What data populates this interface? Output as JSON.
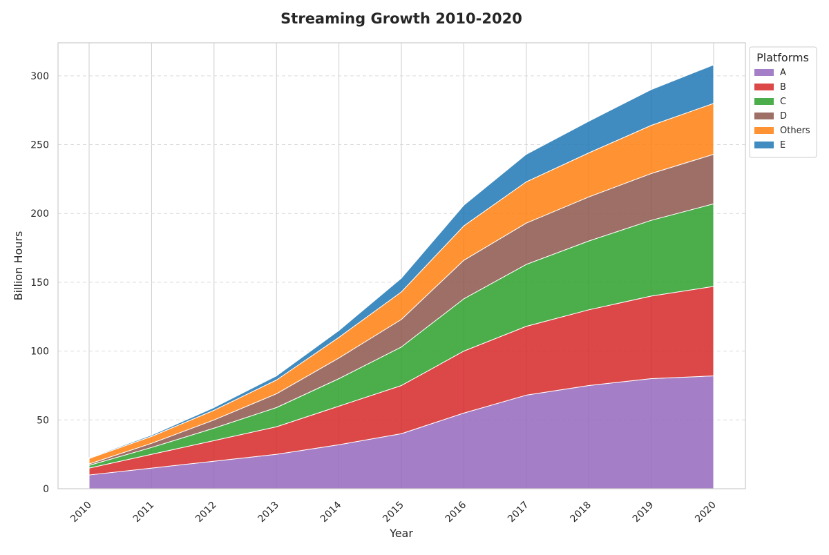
{
  "chart_data": {
    "type": "area",
    "stacked": true,
    "title": "Streaming Growth 2010-2020",
    "xlabel": "Year",
    "ylabel": "Billion Hours",
    "categories": [
      "2010",
      "2011",
      "2012",
      "2013",
      "2014",
      "2015",
      "2016",
      "2017",
      "2018",
      "2019",
      "2020"
    ],
    "ylim": [
      0,
      324
    ],
    "yticks": [
      0,
      50,
      100,
      150,
      200,
      250,
      300
    ],
    "grid": "y-dashed, x-solid",
    "legend": {
      "title": "Platforms",
      "placement": "outside-top-right"
    },
    "series": [
      {
        "name": "A",
        "color": "#9467bd",
        "values": [
          10,
          15,
          20,
          25,
          32,
          40,
          55,
          68,
          75,
          80,
          82
        ]
      },
      {
        "name": "B",
        "color": "#d62728",
        "values": [
          5,
          10,
          15,
          20,
          28,
          35,
          45,
          50,
          55,
          60,
          65
        ]
      },
      {
        "name": "C",
        "color": "#2ca02c",
        "values": [
          2,
          5,
          9,
          14,
          20,
          28,
          38,
          45,
          50,
          55,
          60
        ]
      },
      {
        "name": "D",
        "color": "#8c564b",
        "values": [
          1,
          3,
          6,
          10,
          15,
          20,
          28,
          30,
          32,
          34,
          36
        ]
      },
      {
        "name": "Others",
        "color": "#ff7f0e",
        "values": [
          4,
          5,
          7,
          10,
          15,
          20,
          25,
          30,
          32,
          35,
          37
        ]
      },
      {
        "name": "E",
        "color": "#1f77b4",
        "values": [
          0.5,
          1,
          2,
          3,
          5,
          10,
          15,
          20,
          23,
          26,
          28
        ]
      }
    ]
  }
}
